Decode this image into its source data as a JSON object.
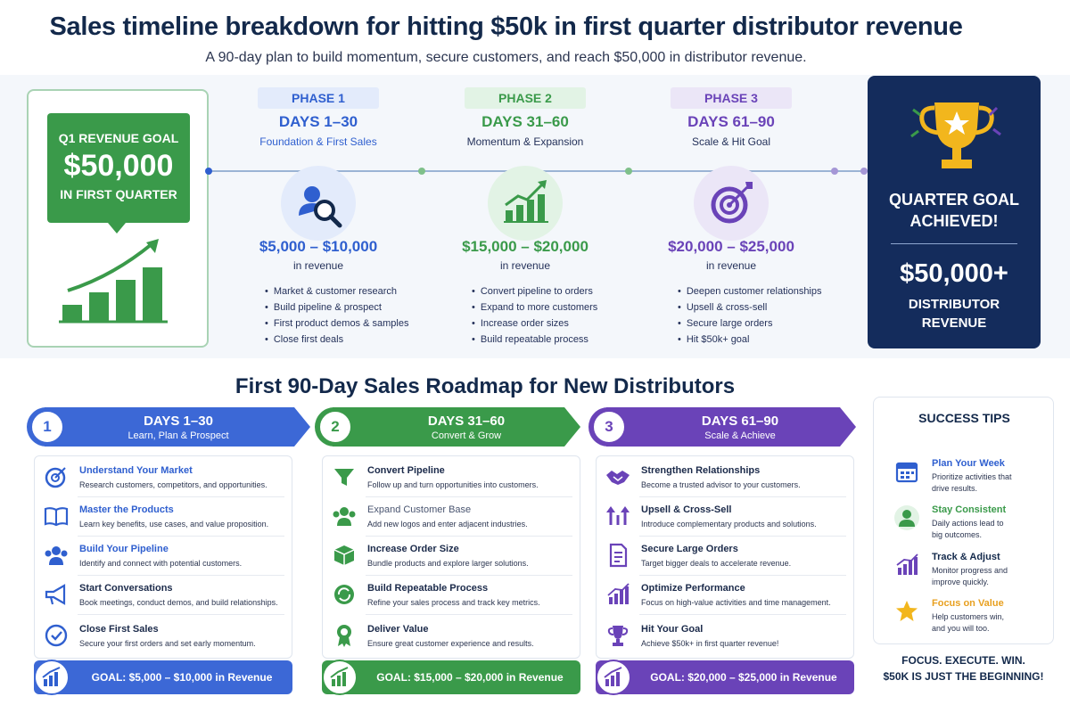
{
  "header": {
    "title": "Sales timeline breakdown for hitting $50k in first quarter distributor revenue",
    "subtitle": "A 90-day plan to build momentum, secure customers, and reach $50,000 in distributor revenue."
  },
  "goal_card": {
    "label": "Q1 REVENUE GOAL",
    "amount": "$50,000",
    "sub": "IN FIRST QUARTER"
  },
  "phases": [
    {
      "pill": "PHASE 1",
      "days": "DAYS 1–30",
      "desc": "Foundation & First Sales",
      "range": "$5,000 – $10,000",
      "rev": "in revenue",
      "bullets": [
        "Market & customer research",
        "Build pipeline & prospect",
        "First product demos & samples",
        "Close first deals"
      ]
    },
    {
      "pill": "PHASE 2",
      "days": "DAYS 31–60",
      "desc": "Momentum & Expansion",
      "range": "$15,000 – $20,000",
      "rev": "in revenue",
      "bullets": [
        "Convert pipeline to orders",
        "Expand to more customers",
        "Increase order sizes",
        "Build repeatable process"
      ]
    },
    {
      "pill": "PHASE 3",
      "days": "DAYS 61–90",
      "desc": "Scale & Hit Goal",
      "range": "$20,000 – $25,000",
      "rev": "in revenue",
      "bullets": [
        "Deepen customer relationships",
        "Upsell & cross-sell",
        "Secure large orders",
        "Hit $50k+ goal"
      ]
    }
  ],
  "achieve": {
    "title_line1": "QUARTER GOAL",
    "title_line2": "ACHIEVED!",
    "amount": "$50,000+",
    "sub_line1": "DISTRIBUTOR",
    "sub_line2": "REVENUE"
  },
  "roadmap": {
    "title": "First 90-Day Sales Roadmap for New Distributors",
    "columns": [
      {
        "num": "1",
        "days": "DAYS 1–30",
        "sub": "Learn, Plan & Prospect",
        "items": [
          {
            "title": "Understand Your Market",
            "desc": "Research customers, competitors, and opportunities."
          },
          {
            "title": "Master the Products",
            "desc": "Learn key benefits, use cases, and value proposition."
          },
          {
            "title": "Build Your Pipeline",
            "desc": "Identify and connect with potential customers."
          },
          {
            "title": "Start Conversations",
            "desc": "Book meetings, conduct demos, and build relationships."
          },
          {
            "title": "Close First Sales",
            "desc": "Secure your first orders and set early momentum."
          }
        ],
        "goal": "GOAL: $5,000 – $10,000 in Revenue"
      },
      {
        "num": "2",
        "days": "DAYS 31–60",
        "sub": "Convert & Grow",
        "items": [
          {
            "title": "Convert Pipeline",
            "desc": "Follow up and turn opportunities into customers."
          },
          {
            "title": "Expand Customer Base",
            "desc": "Add new logos and enter adjacent industries."
          },
          {
            "title": "Increase Order Size",
            "desc": "Bundle products and explore larger solutions."
          },
          {
            "title": "Build Repeatable Process",
            "desc": "Refine your sales process and track key metrics."
          },
          {
            "title": "Deliver Value",
            "desc": "Ensure great customer experience and results."
          }
        ],
        "goal": "GOAL: $15,000 – $20,000 in Revenue"
      },
      {
        "num": "3",
        "days": "DAYS 61–90",
        "sub": "Scale & Achieve",
        "items": [
          {
            "title": "Strengthen Relationships",
            "desc": "Become a trusted advisor to your customers."
          },
          {
            "title": "Upsell & Cross-Sell",
            "desc": "Introduce complementary products and solutions."
          },
          {
            "title": "Secure Large Orders",
            "desc": "Target bigger deals to accelerate revenue."
          },
          {
            "title": "Optimize Performance",
            "desc": "Focus on high-value activities and time management."
          },
          {
            "title": "Hit Your Goal",
            "desc": "Achieve $50k+ in first quarter revenue!"
          }
        ],
        "goal": "GOAL: $20,000 – $25,000 in Revenue"
      }
    ]
  },
  "tips": {
    "title": "SUCCESS TIPS",
    "items": [
      {
        "title": "Plan Your Week",
        "desc_line1": "Prioritize activities that",
        "desc_line2": "drive results."
      },
      {
        "title": "Stay Consistent",
        "desc_line1": "Daily actions lead to",
        "desc_line2": "big outcomes."
      },
      {
        "title": "Track & Adjust",
        "desc_line1": "Monitor progress and",
        "desc_line2": "improve quickly."
      },
      {
        "title": "Focus on Value",
        "desc_line1": "Help customers win,",
        "desc_line2": "and you will too."
      }
    ],
    "footer_line1": "FOCUS. EXECUTE. WIN.",
    "footer_line2": "$50K IS JUST THE BEGINNING!"
  },
  "colors": {
    "navy": "#13294b",
    "blue": "#2f5fcf",
    "green": "#3a9a4a",
    "purple": "#6a43b8",
    "orange": "#e8a020"
  }
}
